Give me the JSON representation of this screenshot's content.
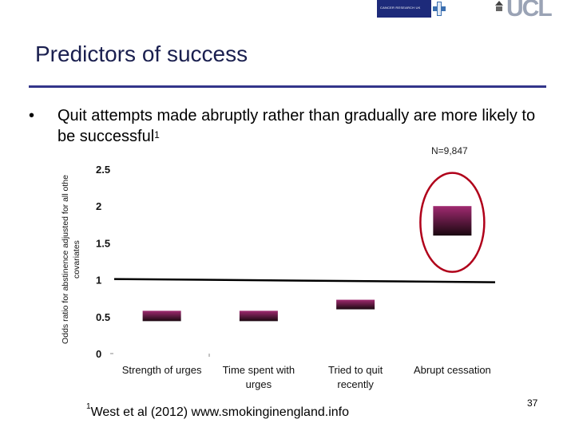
{
  "header": {
    "logo_cruk_text": "CANCER RESEARCH UK",
    "logo_partner_text": "",
    "logo_ucl": "UCL"
  },
  "slide": {
    "title": "Predictors of success",
    "bullet_text": "Quit attempts made abruptly rather than gradually are more likely to be successful",
    "bullet_sup": "1",
    "sample_size": "N=9,847",
    "footnote_sup": "1",
    "footnote_text": "West et al (2012) www.smokinginengland.info",
    "page_number": "37"
  },
  "colors": {
    "title": "#1a1f4f",
    "rule": "#33358a",
    "bar_top": "#a02a70",
    "bar_bottom": "#1a0810",
    "highlight_ellipse": "#b0001a"
  },
  "chart_data": {
    "type": "bar",
    "categories": [
      "Strength of urges",
      "Time spent with urges",
      "Tried to quit recently",
      "Abrupt cessation"
    ],
    "category_lines": [
      [
        "Strength of urges"
      ],
      [
        "Time spent with",
        "urges"
      ],
      [
        "Tried to quit",
        "recently"
      ],
      [
        "Abrupt cessation"
      ]
    ],
    "values": [
      0.58,
      0.58,
      0.73,
      2.0
    ],
    "bar_low": [
      0.44,
      0.44,
      0.6,
      1.6
    ],
    "ylabel_lines": [
      "Odds ratio for abstinence adjusted for all othe",
      "covariates"
    ],
    "ylim": [
      0,
      2.5
    ],
    "yticks": [
      "0",
      "0.5",
      "1",
      "1.5",
      "2",
      "2.5"
    ],
    "reference_line": 1,
    "highlight": "Abrupt cessation"
  }
}
